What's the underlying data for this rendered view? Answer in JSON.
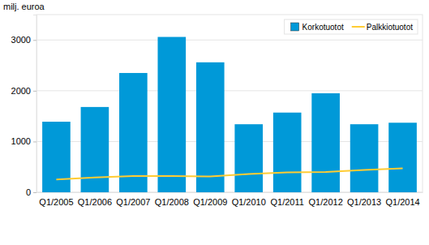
{
  "chart_data": {
    "type": "bar",
    "y_label": "milj. euroa",
    "categories": [
      "Q1/2005",
      "Q1/2006",
      "Q1/2007",
      "Q1/2008",
      "Q1/2009",
      "Q1/2010",
      "Q1/2011",
      "Q1/2012",
      "Q1/2013",
      "Q1/2014"
    ],
    "series": [
      {
        "name": "Korkotuotot",
        "type": "bar",
        "color": "#0099d8",
        "values": [
          1390,
          1680,
          2350,
          3060,
          2560,
          1340,
          1570,
          1950,
          1340,
          1370
        ]
      },
      {
        "name": "Palkkiotuotot",
        "type": "line",
        "color": "#ffcc33",
        "values": [
          250,
          290,
          320,
          320,
          310,
          360,
          390,
          400,
          440,
          470
        ]
      }
    ],
    "ylim": [
      0,
      3500
    ],
    "yticks": [
      0,
      1000,
      2000,
      3000
    ],
    "grid": true,
    "legend": "top-right"
  }
}
